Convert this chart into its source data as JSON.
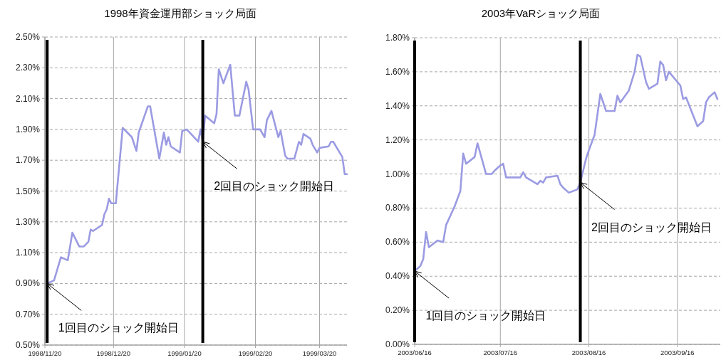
{
  "chart_data": [
    {
      "type": "line",
      "title": "1998年資金運用部ショック局面",
      "x": [
        "1998-11-21",
        "1998-11-24",
        "1998-11-27",
        "1998-11-30",
        "1998-12-02",
        "1998-12-03",
        "1998-12-05",
        "1998-12-07",
        "1998-12-09",
        "1998-12-10",
        "1998-12-11",
        "1998-12-15",
        "1998-12-16",
        "1998-12-17",
        "1998-12-18",
        "1998-12-19",
        "1998-12-21",
        "1998-12-24",
        "1998-12-28",
        "1998-12-30",
        "1998-12-31",
        "1999-01-04",
        "1999-01-05",
        "1999-01-09",
        "1999-01-11",
        "1999-01-12",
        "1999-01-13",
        "1999-01-14",
        "1999-01-18",
        "1999-01-19",
        "1999-01-21",
        "1999-01-26",
        "1999-01-27",
        "1999-01-28",
        "1999-01-29",
        "1999-02-02",
        "1999-02-03",
        "1999-02-04",
        "1999-02-06",
        "1999-02-09",
        "1999-02-11",
        "1999-02-13",
        "1999-02-16",
        "1999-02-17",
        "1999-02-19",
        "1999-02-22",
        "1999-02-24",
        "1999-02-25",
        "1999-02-27",
        "1999-03-02",
        "1999-03-03",
        "1999-03-05",
        "1999-03-06",
        "1999-03-09",
        "1999-03-11",
        "1999-03-12",
        "1999-03-13",
        "1999-03-16",
        "1999-03-17",
        "1999-03-19",
        "1999-03-20",
        "1999-03-24",
        "1999-03-25",
        "1999-03-26",
        "1999-03-30",
        "1999-03-31",
        "1999-04-01"
      ],
      "series": [
        {
          "color": "#9b9be3",
          "values": [
            0.9,
            0.92,
            1.07,
            1.05,
            1.23,
            1.2,
            1.14,
            1.14,
            1.17,
            1.25,
            1.24,
            1.28,
            1.35,
            1.38,
            1.45,
            1.42,
            1.42,
            1.91,
            1.85,
            1.76,
            1.88,
            2.05,
            2.05,
            1.71,
            1.88,
            1.8,
            1.85,
            1.79,
            1.75,
            1.89,
            1.9,
            1.82,
            1.9,
            1.82,
            1.99,
            1.94,
            2.0,
            2.29,
            2.2,
            2.32,
            1.99,
            1.99,
            2.21,
            2.16,
            1.9,
            1.9,
            1.85,
            1.96,
            2.02,
            1.85,
            1.89,
            1.73,
            1.71,
            1.71,
            1.82,
            1.8,
            1.87,
            1.84,
            1.8,
            1.75,
            1.78,
            1.79,
            1.82,
            1.82,
            1.72,
            1.61,
            1.61
          ]
        }
      ],
      "xlim": [
        "1998-11-20",
        "1999-04-01"
      ],
      "xticks": [
        {
          "value": "1998-11-20",
          "label": "1998/11/20"
        },
        {
          "value": "1998-12-20",
          "label": "1998/12/20"
        },
        {
          "value": "1999-01-20",
          "label": "1999/01/20"
        },
        {
          "value": "1999-02-20",
          "label": "1999/02/20"
        },
        {
          "value": "1999-03-20",
          "label": "1999/03/20"
        }
      ],
      "ylim": [
        0.5,
        2.5
      ],
      "yticks": [
        {
          "value": 0.5,
          "label": "0.50%"
        },
        {
          "value": 0.7,
          "label": "0.70%"
        },
        {
          "value": 0.9,
          "label": "0.90%"
        },
        {
          "value": 1.1,
          "label": "1.10%"
        },
        {
          "value": 1.3,
          "label": "1.30%"
        },
        {
          "value": 1.5,
          "label": "1.50%"
        },
        {
          "value": 1.7,
          "label": "1.70%"
        },
        {
          "value": 1.9,
          "label": "1.90%"
        },
        {
          "value": 2.1,
          "label": "2.10%"
        },
        {
          "value": 2.3,
          "label": "2.30%"
        },
        {
          "value": 2.5,
          "label": "2.50%"
        }
      ],
      "grid": true,
      "ref_lines": [
        {
          "axis": "x",
          "value": "1998-11-21",
          "color": "#000000"
        },
        {
          "axis": "x",
          "value": "1999-01-28",
          "color": "#000000"
        }
      ],
      "annotations": [
        {
          "text": "1回目のショック開始日",
          "x": "1998-11-21",
          "y": 0.9
        },
        {
          "text": "2回目のショック開始日",
          "x": "1999-01-28",
          "y": 1.82
        }
      ]
    },
    {
      "type": "line",
      "title": "2003年VaRショック局面",
      "x": [
        "2003-06-16",
        "2003-06-18",
        "2003-06-19",
        "2003-06-20",
        "2003-06-21",
        "2003-06-24",
        "2003-06-26",
        "2003-06-27",
        "2003-06-30",
        "2003-07-02",
        "2003-07-03",
        "2003-07-04",
        "2003-07-07",
        "2003-07-08",
        "2003-07-11",
        "2003-07-13",
        "2003-07-14",
        "2003-07-16",
        "2003-07-17",
        "2003-07-18",
        "2003-07-23",
        "2003-07-24",
        "2003-07-25",
        "2003-07-29",
        "2003-07-30",
        "2003-07-31",
        "2003-08-01",
        "2003-08-05",
        "2003-08-06",
        "2003-08-07",
        "2003-08-09",
        "2003-08-12",
        "2003-08-13",
        "2003-08-15",
        "2003-08-16",
        "2003-08-18",
        "2003-08-20",
        "2003-08-22",
        "2003-08-25",
        "2003-08-26",
        "2003-08-27",
        "2003-08-30",
        "2003-09-01",
        "2003-09-02",
        "2003-09-03",
        "2003-09-05",
        "2003-09-06",
        "2003-09-09",
        "2003-09-10",
        "2003-09-11",
        "2003-09-12",
        "2003-09-13",
        "2003-09-17",
        "2003-09-18",
        "2003-09-19",
        "2003-09-23",
        "2003-09-25",
        "2003-09-26",
        "2003-09-27",
        "2003-09-29",
        "2003-09-30"
      ],
      "series": [
        {
          "color": "#9b9be3",
          "values": [
            0.43,
            0.46,
            0.5,
            0.66,
            0.57,
            0.61,
            0.6,
            0.7,
            0.81,
            0.9,
            1.12,
            1.06,
            1.1,
            1.18,
            1.0,
            1.0,
            1.02,
            1.05,
            1.06,
            0.98,
            0.98,
            1.01,
            0.98,
            0.94,
            0.96,
            0.95,
            0.98,
            0.99,
            0.94,
            0.92,
            0.89,
            0.91,
            0.95,
            1.09,
            1.14,
            1.23,
            1.47,
            1.37,
            1.37,
            1.46,
            1.42,
            1.49,
            1.6,
            1.7,
            1.69,
            1.54,
            1.5,
            1.53,
            1.66,
            1.64,
            1.55,
            1.6,
            1.52,
            1.44,
            1.45,
            1.28,
            1.31,
            1.42,
            1.45,
            1.48,
            1.44
          ]
        }
      ],
      "xlim": [
        "2003-06-16",
        "2003-10-01"
      ],
      "xticks": [
        {
          "value": "2003-06-16",
          "label": "2003/06/16"
        },
        {
          "value": "2003-07-16",
          "label": "2003/07/16"
        },
        {
          "value": "2003-08-16",
          "label": "2003/08/16"
        },
        {
          "value": "2003-09-16",
          "label": "2003/09/16"
        }
      ],
      "ylim": [
        0,
        1.8
      ],
      "yticks": [
        {
          "value": 0,
          "label": "0.00%"
        },
        {
          "value": 0.2,
          "label": "0.20%"
        },
        {
          "value": 0.4,
          "label": "0.40%"
        },
        {
          "value": 0.6,
          "label": "0.60%"
        },
        {
          "value": 0.8,
          "label": "0.80%"
        },
        {
          "value": 1.0,
          "label": "1.00%"
        },
        {
          "value": 1.2,
          "label": "1.20%"
        },
        {
          "value": 1.4,
          "label": "1.40%"
        },
        {
          "value": 1.6,
          "label": "1.60%"
        },
        {
          "value": 1.8,
          "label": "1.80%"
        }
      ],
      "grid": true,
      "ref_lines": [
        {
          "axis": "x",
          "value": "2003-06-16",
          "color": "#000000"
        },
        {
          "axis": "x",
          "value": "2003-08-13",
          "color": "#000000"
        }
      ],
      "annotations": [
        {
          "text": "1回目のショック開始日",
          "x": "2003-06-16",
          "y": 0.43
        },
        {
          "text": "2回目のショック開始日",
          "x": "2003-08-13",
          "y": 0.95
        }
      ]
    }
  ]
}
